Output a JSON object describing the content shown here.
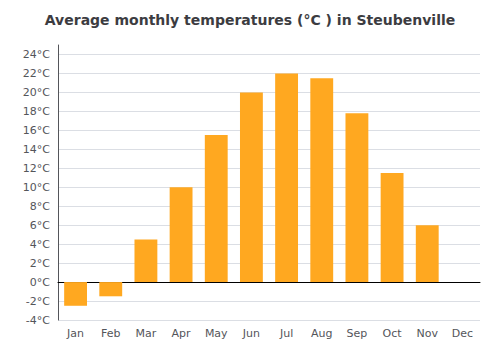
{
  "chart_data": {
    "type": "bar",
    "title": "Average monthly temperatures (°C ) in Steubenville",
    "categories": [
      "Jan",
      "Feb",
      "Mar",
      "Apr",
      "May",
      "Jun",
      "Jul",
      "Aug",
      "Sep",
      "Oct",
      "Nov",
      "Dec"
    ],
    "values": [
      -2.5,
      -1.5,
      4.5,
      10.0,
      15.5,
      20.0,
      22.0,
      21.5,
      17.8,
      11.5,
      6.0,
      0.0
    ],
    "color": "#FFA820",
    "ylim": [
      -4,
      25
    ],
    "yticks": [
      {
        "value": -4,
        "label": "-4°C"
      },
      {
        "value": -2,
        "label": "-2°C"
      },
      {
        "value": 0,
        "label": "0°C"
      },
      {
        "value": 2,
        "label": "2°C"
      },
      {
        "value": 4,
        "label": "4°C"
      },
      {
        "value": 6,
        "label": "6°C"
      },
      {
        "value": 8,
        "label": "8°C"
      },
      {
        "value": 10,
        "label": "10°C"
      },
      {
        "value": 12,
        "label": "12°C"
      },
      {
        "value": 14,
        "label": "14°C"
      },
      {
        "value": 16,
        "label": "16°C"
      },
      {
        "value": 18,
        "label": "18°C"
      },
      {
        "value": 20,
        "label": "20°C"
      },
      {
        "value": 22,
        "label": "22°C"
      },
      {
        "value": 24,
        "label": "24°C"
      }
    ],
    "grid": true
  }
}
